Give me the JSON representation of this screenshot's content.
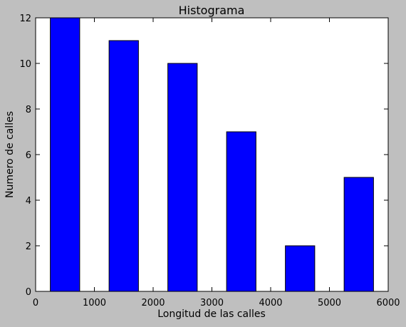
{
  "chart_data": {
    "type": "bar",
    "title": "Histograma",
    "xlabel": "Longitud de las calles",
    "ylabel": "Numero de calles",
    "xlim": [
      0,
      6000
    ],
    "ylim": [
      0,
      12
    ],
    "xticks": [
      0,
      1000,
      2000,
      3000,
      4000,
      5000,
      6000
    ],
    "yticks": [
      0,
      2,
      4,
      6,
      8,
      10,
      12
    ],
    "bars": [
      {
        "x0": 250,
        "x1": 750,
        "value": 12
      },
      {
        "x0": 1250,
        "x1": 1750,
        "value": 11
      },
      {
        "x0": 2250,
        "x1": 2750,
        "value": 10
      },
      {
        "x0": 3250,
        "x1": 3750,
        "value": 7
      },
      {
        "x0": 4250,
        "x1": 4750,
        "value": 2
      },
      {
        "x0": 5250,
        "x1": 5750,
        "value": 5
      }
    ],
    "bar_color": "#0000ff",
    "edge_color": "#000000",
    "grid": false,
    "legend": "none"
  }
}
